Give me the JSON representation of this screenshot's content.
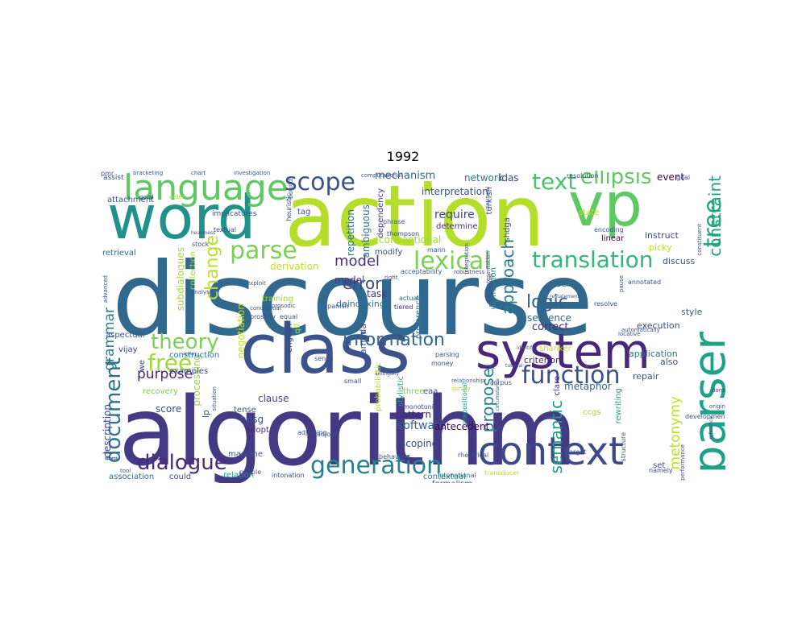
{
  "title": "1992",
  "words": [
    {
      "text": "discourse",
      "color": "#31688e"
    },
    {
      "text": "algorithm",
      "color": "#443983"
    },
    {
      "text": "action",
      "color": "#b5de2b"
    },
    {
      "text": "word",
      "color": "#21918c"
    },
    {
      "text": "vp",
      "color": "#5ec962"
    },
    {
      "text": "class",
      "color": "#3b528b"
    },
    {
      "text": "system",
      "color": "#482878"
    },
    {
      "text": "context",
      "color": "#3e4989"
    },
    {
      "text": "parser",
      "color": "#1fa187"
    },
    {
      "text": "language",
      "color": "#5ec962"
    },
    {
      "text": "generation",
      "color": "#26828e"
    },
    {
      "text": "function",
      "color": "#3b528b"
    },
    {
      "text": "dialogue",
      "color": "#472d7b"
    },
    {
      "text": "document",
      "color": "#2c728e"
    },
    {
      "text": "lexical",
      "color": "#7ad151"
    },
    {
      "text": "translation",
      "color": "#35b779"
    },
    {
      "text": "text",
      "color": "#4ac16d"
    },
    {
      "text": "scope",
      "color": "#3b528b"
    },
    {
      "text": "parse",
      "color": "#7ad151"
    },
    {
      "text": "theory",
      "color": "#7ad151"
    },
    {
      "text": "free",
      "color": "#a0da39"
    },
    {
      "text": "tree",
      "color": "#22a884"
    },
    {
      "text": "constraint",
      "color": "#1fa187"
    },
    {
      "text": "change",
      "color": "#bddf26"
    },
    {
      "text": "ellipsis",
      "color": "#5ec962"
    },
    {
      "text": "information",
      "color": "#31688e"
    },
    {
      "text": "purpose",
      "color": "#482878"
    },
    {
      "text": "error",
      "color": "#3e4989"
    },
    {
      "text": "approach",
      "color": "#2a788e"
    },
    {
      "text": "logic",
      "color": "#355f8d"
    },
    {
      "text": "semantic",
      "color": "#1f9e89"
    },
    {
      "text": "propose",
      "color": "#26828e"
    },
    {
      "text": "model",
      "color": "#46337e"
    },
    {
      "text": "grammar",
      "color": "#2a788e"
    },
    {
      "text": "metonymy",
      "color": "#c2df23"
    },
    {
      "text": "mechanism",
      "color": "#31688e"
    },
    {
      "text": "software",
      "color": "#355f8d"
    },
    {
      "text": "require",
      "color": "#404688"
    },
    {
      "text": "subdialogues",
      "color": "#a0da39"
    },
    {
      "text": "processing",
      "color": "#93d741"
    },
    {
      "text": "negotiation",
      "color": "#bddf26"
    },
    {
      "text": "interpretation",
      "color": "#3b528b"
    },
    {
      "text": "network",
      "color": "#2a788e"
    },
    {
      "text": "idas",
      "color": "#3e4989"
    },
    {
      "text": "event",
      "color": "#440154"
    },
    {
      "text": "correct",
      "color": "#472d7b"
    },
    {
      "text": "sentence",
      "color": "#31688e"
    },
    {
      "text": "metaphor",
      "color": "#355f8d"
    },
    {
      "text": "description",
      "color": "#3e4989"
    },
    {
      "text": "hpsg",
      "color": "#3b528b"
    },
    {
      "text": "clause",
      "color": "#404688"
    },
    {
      "text": "scoping",
      "color": "#3e4989"
    },
    {
      "text": "antecedent",
      "color": "#440154"
    },
    {
      "text": "pattern",
      "color": "#482878"
    },
    {
      "text": "task",
      "color": "#46327e"
    },
    {
      "text": "model",
      "color": "#46337e"
    },
    {
      "text": "derivation",
      "color": "#bddf26"
    },
    {
      "text": "conventional",
      "color": "#a0da39"
    },
    {
      "text": "modify",
      "color": "#3e4989"
    },
    {
      "text": "determine",
      "color": "#472d7b"
    },
    {
      "text": "ambiguous",
      "color": "#2a788e"
    },
    {
      "text": "repetition",
      "color": "#2c728e"
    },
    {
      "text": "dependency",
      "color": "#46337e"
    },
    {
      "text": "tag",
      "color": "#3b528b"
    },
    {
      "text": "instruct",
      "color": "#3e4989"
    },
    {
      "text": "picky",
      "color": "#c2df23"
    },
    {
      "text": "discuss",
      "color": "#3b528b"
    },
    {
      "text": "style",
      "color": "#355f8d"
    },
    {
      "text": "execution",
      "color": "#3e4989"
    },
    {
      "text": "application",
      "color": "#2a788e"
    },
    {
      "text": "also",
      "color": "#3b528b"
    },
    {
      "text": "criterion",
      "color": "#482878"
    },
    {
      "text": "repair",
      "color": "#3b528b"
    },
    {
      "text": "connectionist",
      "color": "#3b528b"
    },
    {
      "text": "rewriting",
      "color": "#22a884"
    },
    {
      "text": "ccgs",
      "color": "#a0da39"
    },
    {
      "text": "set",
      "color": "#3e4989"
    },
    {
      "text": "adopt",
      "color": "#482878"
    },
    {
      "text": "tense",
      "color": "#3b528b"
    },
    {
      "text": "machine",
      "color": "#3b528b"
    },
    {
      "text": "relation",
      "color": "#1fa187"
    },
    {
      "text": "contextual",
      "color": "#26828e"
    },
    {
      "text": "formalism",
      "color": "#3b528b"
    },
    {
      "text": "association",
      "color": "#31688e"
    },
    {
      "text": "could",
      "color": "#3b528b"
    },
    {
      "text": "recovery",
      "color": "#7ad151"
    },
    {
      "text": "examples",
      "color": "#3e4989"
    },
    {
      "text": "construction",
      "color": "#2a788e"
    },
    {
      "text": "vijay",
      "color": "#404688"
    },
    {
      "text": "aspectual",
      "color": "#3b528b"
    },
    {
      "text": "retrieval",
      "color": "#31688e"
    },
    {
      "text": "collection",
      "color": "#a0da39"
    },
    {
      "text": "deindexing",
      "color": "#2c728e"
    },
    {
      "text": "training",
      "color": "#a0da39"
    },
    {
      "text": "score",
      "color": "#3e4989"
    },
    {
      "text": "lp",
      "color": "#3b528b"
    },
    {
      "text": "qlf",
      "color": "#b5de2b"
    },
    {
      "text": "english",
      "color": "#3e4989"
    },
    {
      "text": "lambda",
      "color": "#3b528b"
    },
    {
      "text": "probabilistic",
      "color": "#b5de2b"
    },
    {
      "text": "stylistic",
      "color": "#22a884"
    },
    {
      "text": "preference",
      "color": "#2a788e"
    },
    {
      "text": "unification",
      "color": "#2a788e"
    },
    {
      "text": "turkish",
      "color": "#3b528b"
    },
    {
      "text": "shdga",
      "color": "#3b528b"
    },
    {
      "text": "clare",
      "color": "#46337e"
    },
    {
      "text": "sens",
      "color": "#31688e"
    },
    {
      "text": "three",
      "color": "#7ad151"
    },
    {
      "text": "eaa",
      "color": "#3e4989"
    },
    {
      "text": "state",
      "color": "#bddf26"
    },
    {
      "text": "shanker",
      "color": "#c2df23"
    },
    {
      "text": "linear",
      "color": "#440154"
    },
    {
      "text": "we",
      "color": "#3e4989"
    },
    {
      "text": "implicatures",
      "color": "#3b528b"
    },
    {
      "text": "textual",
      "color": "#3b528b"
    },
    {
      "text": "stock",
      "color": "#3e4989"
    },
    {
      "text": "exploit",
      "color": "#3b528b"
    },
    {
      "text": "pitch",
      "color": "#3e4989"
    },
    {
      "text": "people",
      "color": "#3b528b"
    },
    {
      "text": "prosody",
      "color": "#3b528b"
    },
    {
      "text": "spanish",
      "color": "#3b528b"
    },
    {
      "text": "tiered",
      "color": "#472d7b"
    },
    {
      "text": "actual",
      "color": "#31688e"
    },
    {
      "text": "mann",
      "color": "#3b528b"
    },
    {
      "text": "thompson",
      "color": "#3e4989"
    },
    {
      "text": "phrase",
      "color": "#3b528b"
    },
    {
      "text": "bound",
      "color": "#3b528b"
    },
    {
      "text": "heuristic",
      "color": "#3e4989"
    },
    {
      "text": "acceptability",
      "color": "#3b528b"
    },
    {
      "text": "robustness",
      "color": "#3e4989"
    },
    {
      "text": "relationship",
      "color": "#31688e"
    },
    {
      "text": "survey",
      "color": "#bddf26"
    },
    {
      "text": "integration",
      "color": "#3b528b"
    },
    {
      "text": "prepositional",
      "color": "#1fa187"
    },
    {
      "text": "monotonic",
      "color": "#3e4989"
    },
    {
      "text": "adjoining",
      "color": "#3b528b"
    },
    {
      "text": "adjoin",
      "color": "#3b528b"
    },
    {
      "text": "small",
      "color": "#3e4989"
    },
    {
      "text": "money",
      "color": "#3b528b"
    },
    {
      "text": "parsing",
      "color": "#3b528b"
    },
    {
      "text": "corpus",
      "color": "#3b528b"
    },
    {
      "text": "treat",
      "color": "#3e4989"
    },
    {
      "text": "behavior",
      "color": "#3b528b"
    },
    {
      "text": "intonational",
      "color": "#2a788e"
    },
    {
      "text": "intonation",
      "color": "#3b528b"
    },
    {
      "text": "rhetorical",
      "color": "#3b528b"
    },
    {
      "text": "transducer",
      "color": "#bddf26"
    },
    {
      "text": "target",
      "color": "#3b528b"
    },
    {
      "text": "structure",
      "color": "#3b528b"
    },
    {
      "text": "namely",
      "color": "#3e4989"
    },
    {
      "text": "performance",
      "color": "#3b528b"
    },
    {
      "text": "development",
      "color": "#3b528b"
    },
    {
      "text": "original",
      "color": "#3b528b"
    },
    {
      "text": "domain",
      "color": "#3e4989"
    },
    {
      "text": "goal",
      "color": "#3b528b"
    },
    {
      "text": "resolution",
      "color": "#3e4989"
    },
    {
      "text": "encoding",
      "color": "#3b528b"
    },
    {
      "text": "constituent",
      "color": "#3b528b"
    },
    {
      "text": "misrepresentation",
      "color": "#3b528b"
    },
    {
      "text": "multilingual",
      "color": "#3b528b"
    },
    {
      "text": "structural",
      "color": "#3b528b"
    },
    {
      "text": "restatement",
      "color": "#3b528b"
    },
    {
      "text": "annotated",
      "color": "#3b528b"
    },
    {
      "text": "pause",
      "color": "#3b528b"
    },
    {
      "text": "resolve",
      "color": "#3b528b"
    },
    {
      "text": "automatically",
      "color": "#3b528b"
    },
    {
      "text": "locative",
      "color": "#3b528b"
    },
    {
      "text": "reference",
      "color": "#3b528b"
    },
    {
      "text": "assist",
      "color": "#3b528b"
    },
    {
      "text": "bracketing",
      "color": "#3b528b"
    },
    {
      "text": "chart",
      "color": "#3b528b"
    },
    {
      "text": "investigation",
      "color": "#3b528b"
    },
    {
      "text": "computational",
      "color": "#3b528b"
    },
    {
      "text": "attachment",
      "color": "#3b528b"
    },
    {
      "text": "good",
      "color": "#3b528b"
    },
    {
      "text": "order",
      "color": "#a0da39"
    },
    {
      "text": "advanced",
      "color": "#3b528b"
    },
    {
      "text": "analysis",
      "color": "#3b528b"
    },
    {
      "text": "conceptual",
      "color": "#3b528b"
    },
    {
      "text": "prosodic",
      "color": "#3b528b"
    },
    {
      "text": "right",
      "color": "#3b528b"
    },
    {
      "text": "equal",
      "color": "#3b528b"
    },
    {
      "text": "sense",
      "color": "#3b528b"
    },
    {
      "text": "spoken",
      "color": "#3b528b"
    },
    {
      "text": "it",
      "color": "#3b528b"
    },
    {
      "text": "situation",
      "color": "#3b528b"
    },
    {
      "text": "heaviness",
      "color": "#3b528b"
    },
    {
      "text": "ambiguity",
      "color": "#3b528b"
    },
    {
      "text": "tutorial",
      "color": "#3b528b"
    },
    {
      "text": "circumstance",
      "color": "#3b528b"
    },
    {
      "text": "fail",
      "color": "#3b528b"
    },
    {
      "text": "identify",
      "color": "#3b528b"
    },
    {
      "text": "object",
      "color": "#3b528b"
    },
    {
      "text": "tool",
      "color": "#3b528b"
    },
    {
      "text": "pmms",
      "color": "#3b528b"
    },
    {
      "text": "pmr",
      "color": "#3b528b"
    }
  ]
}
